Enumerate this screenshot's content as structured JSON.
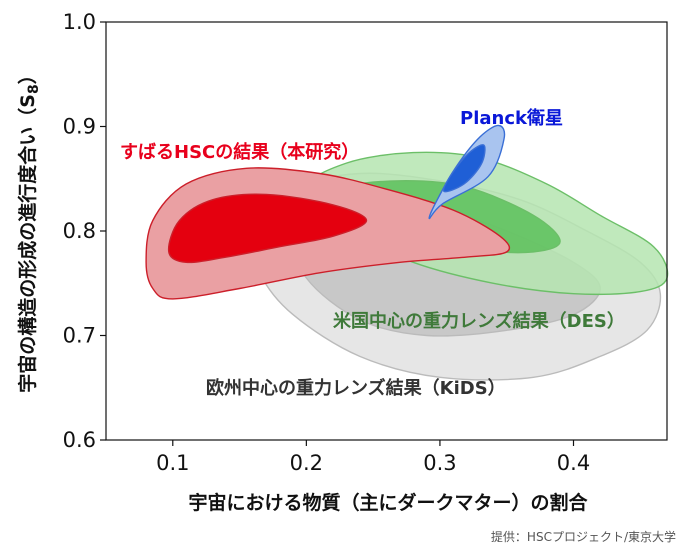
{
  "chart_data": {
    "type": "contour",
    "xlabel": "宇宙における物質（主にダークマター）の割合",
    "ylabel_main": "宇宙の構造の形成の進行度合い（S",
    "ylabel_sub": "8",
    "ylabel_close": "）",
    "xlim": [
      0.05,
      0.47
    ],
    "ylim": [
      0.6,
      1.0
    ],
    "xticks": [
      "0.1",
      "0.2",
      "0.3",
      "0.4"
    ],
    "yticks": [
      "0.6",
      "0.7",
      "0.8",
      "0.9",
      "1.0"
    ],
    "credit": "提供：HSCプロジェクト/東京大学",
    "series": [
      {
        "name": "欧州中心の重力レンズ結果（KiDS）",
        "color_outer": "#e6e6e6",
        "color_inner": "#c8c8c8",
        "edge": "#bbbbbb",
        "outer": [
          [
            0.16,
            0.8
          ],
          [
            0.19,
            0.84
          ],
          [
            0.24,
            0.855
          ],
          [
            0.3,
            0.848
          ],
          [
            0.36,
            0.83
          ],
          [
            0.41,
            0.8
          ],
          [
            0.45,
            0.77
          ],
          [
            0.465,
            0.74
          ],
          [
            0.455,
            0.705
          ],
          [
            0.42,
            0.68
          ],
          [
            0.37,
            0.66
          ],
          [
            0.3,
            0.66
          ],
          [
            0.24,
            0.68
          ],
          [
            0.19,
            0.72
          ],
          [
            0.165,
            0.76
          ]
        ],
        "inner": [
          [
            0.19,
            0.8
          ],
          [
            0.24,
            0.825
          ],
          [
            0.3,
            0.82
          ],
          [
            0.35,
            0.8
          ],
          [
            0.4,
            0.77
          ],
          [
            0.42,
            0.745
          ],
          [
            0.4,
            0.72
          ],
          [
            0.35,
            0.705
          ],
          [
            0.29,
            0.7
          ],
          [
            0.24,
            0.715
          ],
          [
            0.2,
            0.755
          ]
        ]
      },
      {
        "name": "米国中心の重力レンズ結果（DES）",
        "color_outer": "#b5e5b0",
        "color_inner": "#5cbf5a",
        "edge": "#6cbf68",
        "outer": [
          [
            0.2,
            0.84
          ],
          [
            0.23,
            0.865
          ],
          [
            0.28,
            0.875
          ],
          [
            0.33,
            0.87
          ],
          [
            0.38,
            0.845
          ],
          [
            0.42,
            0.815
          ],
          [
            0.46,
            0.785
          ],
          [
            0.47,
            0.755
          ],
          [
            0.45,
            0.742
          ],
          [
            0.4,
            0.74
          ],
          [
            0.34,
            0.75
          ],
          [
            0.28,
            0.77
          ],
          [
            0.23,
            0.8
          ]
        ],
        "inner": [
          [
            0.225,
            0.84
          ],
          [
            0.27,
            0.848
          ],
          [
            0.32,
            0.842
          ],
          [
            0.37,
            0.815
          ],
          [
            0.39,
            0.79
          ],
          [
            0.37,
            0.78
          ],
          [
            0.33,
            0.782
          ],
          [
            0.28,
            0.795
          ],
          [
            0.24,
            0.815
          ]
        ]
      },
      {
        "name": "すばるHSCの結果（本研究）",
        "label_color": "#e8001c",
        "color_outer": "#eaa0a3",
        "color_inner": "#e4000f",
        "edge": "#cc1f2a",
        "outer": [
          [
            0.08,
            0.77
          ],
          [
            0.085,
            0.81
          ],
          [
            0.11,
            0.845
          ],
          [
            0.155,
            0.86
          ],
          [
            0.21,
            0.855
          ],
          [
            0.26,
            0.84
          ],
          [
            0.31,
            0.82
          ],
          [
            0.345,
            0.795
          ],
          [
            0.35,
            0.78
          ],
          [
            0.32,
            0.775
          ],
          [
            0.27,
            0.77
          ],
          [
            0.21,
            0.76
          ],
          [
            0.15,
            0.745
          ],
          [
            0.1,
            0.735
          ],
          [
            0.085,
            0.745
          ]
        ],
        "inner": [
          [
            0.097,
            0.78
          ],
          [
            0.105,
            0.81
          ],
          [
            0.13,
            0.83
          ],
          [
            0.17,
            0.835
          ],
          [
            0.22,
            0.825
          ],
          [
            0.245,
            0.81
          ],
          [
            0.22,
            0.795
          ],
          [
            0.18,
            0.785
          ],
          [
            0.14,
            0.775
          ],
          [
            0.11,
            0.77
          ]
        ]
      },
      {
        "name": "Planck衛星",
        "label_color": "#0a18d8",
        "color_outer": "#a9c4ef",
        "color_inner": "#1f5fd6",
        "edge": "#3a6fd6",
        "outer": [
          [
            0.302,
            0.826
          ],
          [
            0.292,
            0.812
          ],
          [
            0.298,
            0.83
          ],
          [
            0.313,
            0.863
          ],
          [
            0.33,
            0.89
          ],
          [
            0.344,
            0.901
          ],
          [
            0.348,
            0.888
          ],
          [
            0.336,
            0.852
          ]
        ],
        "inner": [
          [
            0.303,
            0.838
          ],
          [
            0.309,
            0.855
          ],
          [
            0.322,
            0.875
          ],
          [
            0.333,
            0.882
          ],
          [
            0.331,
            0.864
          ],
          [
            0.318,
            0.845
          ]
        ]
      }
    ]
  }
}
